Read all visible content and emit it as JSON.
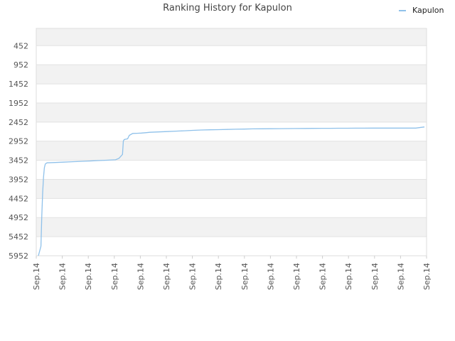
{
  "chart_data": {
    "type": "line",
    "title": "Ranking History for Kapulon",
    "xlabel": "",
    "ylabel": "",
    "y_axis_inverted": true,
    "ylim": [
      5952,
      0
    ],
    "y_ticks": [
      452,
      952,
      1452,
      1952,
      2452,
      2952,
      3452,
      3952,
      4452,
      4952,
      5452,
      5952
    ],
    "x_ticks": [
      "Sep.14",
      "Sep.14",
      "Sep.14",
      "Sep.14",
      "Sep.14",
      "Sep.14",
      "Sep.14",
      "Sep.14",
      "Sep.14",
      "Sep.14",
      "Sep.14",
      "Sep.14",
      "Sep.14",
      "Sep.14",
      "Sep.14",
      "Sep.14"
    ],
    "grid": true,
    "legend_position": "top-right",
    "series": [
      {
        "name": "Kapulon",
        "color": "#8fc1ea",
        "x": [
          0.0,
          0.3,
          0.4,
          0.5,
          0.6,
          0.7,
          0.8,
          1.0,
          2.0,
          3.0,
          4.0,
          5.0,
          6.0,
          7.0,
          8.0,
          9.0,
          9.4,
          9.8,
          9.9,
          10.0,
          10.2,
          10.4,
          10.6,
          11.0,
          11.5,
          12.0,
          12.5,
          13.0,
          14.0,
          15.0,
          16.0,
          17.0,
          18.0,
          19.0,
          20.0,
          21.0,
          22.0,
          23.0,
          24.0,
          25.0,
          26.0,
          27.0,
          28.0,
          29.0,
          30.0,
          31.0,
          32.0,
          33.0,
          34.0,
          35.0,
          36.0,
          37.0,
          38.0,
          39.0,
          40.0,
          41.0,
          42.0,
          43.0,
          44.0,
          45.0
        ],
        "y": [
          5952,
          5700,
          4900,
          4300,
          3900,
          3650,
          3550,
          3520,
          3510,
          3500,
          3490,
          3480,
          3470,
          3460,
          3450,
          3440,
          3400,
          3300,
          2950,
          2910,
          2900,
          2890,
          2800,
          2750,
          2745,
          2740,
          2730,
          2720,
          2710,
          2700,
          2690,
          2680,
          2670,
          2660,
          2655,
          2650,
          2645,
          2640,
          2635,
          2630,
          2628,
          2626,
          2624,
          2622,
          2620,
          2618,
          2617,
          2616,
          2615,
          2614,
          2613,
          2612,
          2611,
          2610,
          2610,
          2610,
          2610,
          2610,
          2610,
          2580
        ]
      }
    ]
  }
}
